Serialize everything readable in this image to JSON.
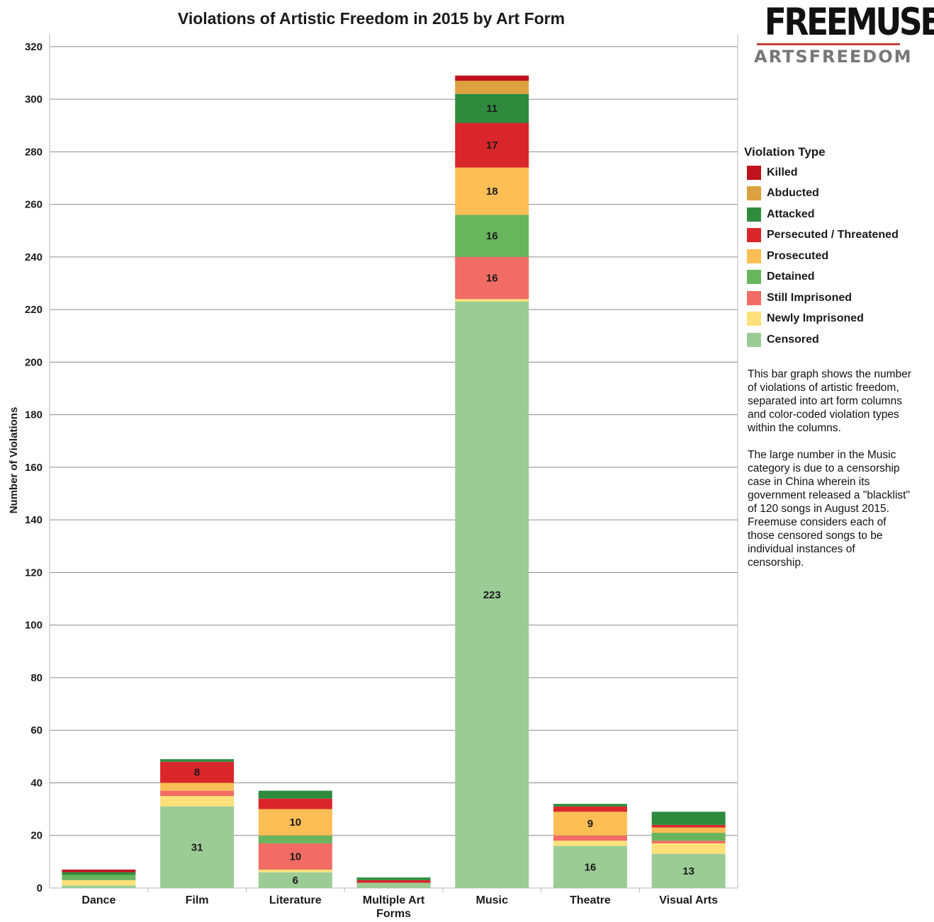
{
  "logo": {
    "main": "FREEMUSE",
    "sub": "ARTSFREEDOM"
  },
  "legend": {
    "title": "Violation Type"
  },
  "description": {
    "paragraph_1": "This bar graph shows the number of violations of artistic freedom, separated into art form columns and color-coded violation types within the columns.",
    "paragraph_2": "The large number in the Music category is due to a censorship case in China wherein its government released a \"blacklist\" of 120 songs in August 2015. Freemuse considers each of those censored songs to be individual instances of censorship."
  },
  "chart_data": {
    "type": "bar",
    "stacked": true,
    "title": "Violations of Artistic Freedom in 2015 by Art Form",
    "xlabel": "",
    "ylabel": "Number of Violations",
    "ylim": [
      0,
      320
    ],
    "yticks": [
      0,
      20,
      40,
      60,
      80,
      100,
      120,
      140,
      160,
      180,
      200,
      220,
      240,
      260,
      280,
      300,
      320
    ],
    "grid": true,
    "legend_position": "right",
    "categories": [
      "Dance",
      "Film",
      "Literature",
      "Multiple Art Forms",
      "Music",
      "Theatre",
      "Visual Arts"
    ],
    "series": [
      {
        "name": "Censored",
        "color": "#9ccc95",
        "values": [
          1,
          31,
          6,
          2,
          223,
          16,
          13
        ]
      },
      {
        "name": "Newly Imprisoned",
        "color": "#fde07a",
        "values": [
          2,
          4,
          1,
          0,
          1,
          2,
          4
        ]
      },
      {
        "name": "Still Imprisoned",
        "color": "#f06c64",
        "values": [
          0,
          2,
          10,
          0,
          16,
          2,
          1
        ]
      },
      {
        "name": "Detained",
        "color": "#68b55d",
        "values": [
          2,
          0,
          3,
          0,
          16,
          0,
          3
        ]
      },
      {
        "name": "Prosecuted",
        "color": "#fdbe55",
        "values": [
          0,
          3,
          10,
          0,
          18,
          9,
          2
        ]
      },
      {
        "name": "Persecuted / Threatened",
        "color": "#d9262b",
        "values": [
          0,
          8,
          4,
          1,
          17,
          2,
          1
        ]
      },
      {
        "name": "Attacked",
        "color": "#2e8b3e",
        "values": [
          1,
          1,
          3,
          1,
          11,
          1,
          5
        ]
      },
      {
        "name": "Abducted",
        "color": "#dba23f",
        "values": [
          0,
          0,
          0,
          0,
          5,
          0,
          0
        ]
      },
      {
        "name": "Killed",
        "color": "#c0111f",
        "values": [
          1,
          0,
          0,
          0,
          2,
          0,
          0
        ]
      }
    ],
    "data_labels": {
      "Film": {
        "Censored": "31",
        "Persecuted / Threatened": "8"
      },
      "Literature": {
        "Censored": "6",
        "Still Imprisoned": "10",
        "Prosecuted": "10"
      },
      "Music": {
        "Censored": "223",
        "Still Imprisoned": "16",
        "Detained": "16",
        "Prosecuted": "18",
        "Persecuted / Threatened": "17",
        "Attacked": "11"
      },
      "Theatre": {
        "Censored": "16",
        "Prosecuted": "9"
      },
      "Visual Arts": {
        "Censored": "13"
      }
    },
    "legend_order": [
      "Killed",
      "Abducted",
      "Attacked",
      "Persecuted / Threatened",
      "Prosecuted",
      "Detained",
      "Still Imprisoned",
      "Newly Imprisoned",
      "Censored"
    ]
  }
}
